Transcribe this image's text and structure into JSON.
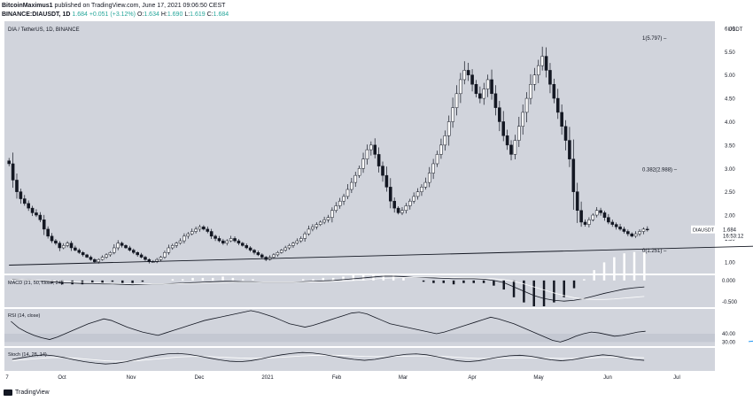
{
  "header": {
    "publisher": "BitcoinMaximus1",
    "published_text": "published on TradingView.com, June 17, 2021 09:06:50 CEST",
    "symbol": "BINANCE:DIAUSDT, 1D",
    "price": "1.684",
    "change": "+0.051 (+3.12%)",
    "o_label": "O:",
    "o": "1.634",
    "h_label": "H:",
    "h": "1.690",
    "l_label": "L:",
    "l": "1.619",
    "c_label": "C:",
    "c": "1.684"
  },
  "footer": {
    "brand": "TradingView"
  },
  "colors": {
    "panel_bg": "#d1d4dc",
    "candle": "#131722",
    "support": "#131722",
    "divergence": "#2196f3",
    "price_tag": "#ffffff"
  },
  "chart_data": {
    "type": "candlestick",
    "title": "DIA / TetherUS, 1D, BINANCE",
    "currency": "USDT",
    "x_labels": [
      "7",
      "Oct",
      "Nov",
      "Dec",
      "2021",
      "Feb",
      "Mar",
      "Apr",
      "May",
      "Jun",
      "Jul"
    ],
    "y_ticks": [
      "1.00",
      "1.50",
      "2.00",
      "2.50",
      "3.00",
      "3.50",
      "4.00",
      "4.50",
      "5.00",
      "5.50",
      "6.00"
    ],
    "ylim": [
      0.75,
      6.15
    ],
    "price_label": {
      "name": "DIAUSDT",
      "value": "1.684",
      "countdown": "16:53:12"
    },
    "fib_levels": [
      {
        "label": "1(5.797)",
        "value": 5.797
      },
      {
        "label": "0.382(2.988)",
        "value": 2.988
      },
      {
        "label": "0(1.251)",
        "value": 1.251
      }
    ],
    "trendline": {
      "from": [
        0,
        0.93
      ],
      "to": [
        213,
        1.38
      ]
    },
    "divergence_line_price": {
      "from": [
        190,
        1.58
      ],
      "to": [
        207,
        1.4
      ]
    },
    "closes": [
      3.1,
      2.75,
      2.5,
      2.35,
      2.25,
      2.15,
      2.05,
      2.0,
      1.9,
      1.7,
      1.55,
      1.45,
      1.4,
      1.3,
      1.35,
      1.4,
      1.3,
      1.25,
      1.2,
      1.15,
      1.1,
      1.05,
      1.0,
      1.05,
      1.1,
      1.15,
      1.2,
      1.3,
      1.4,
      1.35,
      1.3,
      1.25,
      1.2,
      1.15,
      1.1,
      1.05,
      1.0,
      1.0,
      1.05,
      1.1,
      1.2,
      1.3,
      1.35,
      1.4,
      1.45,
      1.55,
      1.6,
      1.65,
      1.7,
      1.75,
      1.7,
      1.65,
      1.55,
      1.5,
      1.45,
      1.4,
      1.45,
      1.5,
      1.45,
      1.4,
      1.35,
      1.3,
      1.25,
      1.2,
      1.15,
      1.1,
      1.05,
      1.1,
      1.15,
      1.2,
      1.25,
      1.3,
      1.35,
      1.4,
      1.45,
      1.5,
      1.6,
      1.7,
      1.75,
      1.8,
      1.85,
      1.9,
      1.95,
      2.1,
      2.2,
      2.3,
      2.4,
      2.55,
      2.7,
      2.85,
      3.0,
      3.2,
      3.4,
      3.5,
      3.3,
      3.05,
      2.85,
      2.6,
      2.3,
      2.15,
      2.05,
      2.1,
      2.2,
      2.3,
      2.4,
      2.5,
      2.6,
      2.7,
      2.9,
      3.1,
      3.3,
      3.5,
      3.7,
      4.0,
      4.3,
      4.6,
      4.9,
      5.1,
      5.0,
      4.8,
      4.6,
      4.5,
      4.7,
      4.9,
      4.6,
      4.3,
      4.0,
      3.7,
      3.5,
      3.3,
      3.6,
      3.9,
      4.2,
      4.5,
      4.8,
      5.0,
      5.2,
      5.4,
      5.1,
      4.8,
      4.5,
      4.2,
      3.9,
      3.6,
      3.2,
      2.5,
      2.1,
      1.85,
      1.8,
      1.9,
      2.0,
      2.1,
      2.05,
      1.95,
      1.85,
      1.8,
      1.75,
      1.7,
      1.65,
      1.6,
      1.55,
      1.6,
      1.65,
      1.7,
      1.684
    ],
    "macd": {
      "label": "MACD (21, 50, close, 24)",
      "ticks": [
        "-0.500",
        "0.000"
      ],
      "ylim": [
        -0.62,
        0.12
      ],
      "line": [
        0.03,
        0.02,
        0.01,
        -0.01,
        -0.03,
        -0.05,
        -0.06,
        -0.07,
        -0.07,
        -0.08,
        -0.08,
        -0.09,
        -0.1,
        -0.09,
        -0.08,
        -0.08,
        -0.07,
        -0.06,
        -0.05,
        -0.04,
        -0.03,
        -0.02,
        -0.02,
        -0.03,
        -0.03,
        -0.04,
        -0.04,
        -0.04,
        -0.04,
        -0.03,
        -0.02,
        -0.01,
        0.0,
        0.02,
        0.04,
        0.06,
        0.08,
        0.1,
        0.1,
        0.09,
        0.08,
        0.07,
        0.06,
        0.05,
        0.04,
        0.04,
        0.04,
        0.03,
        0.0,
        -0.05,
        -0.15,
        -0.25,
        -0.35,
        -0.42,
        -0.46,
        -0.48,
        -0.46,
        -0.42,
        -0.36,
        -0.3,
        -0.25,
        -0.2,
        -0.17,
        -0.15
      ],
      "signal": [
        0.02,
        0.02,
        0.01,
        0.0,
        -0.01,
        -0.02,
        -0.03,
        -0.04,
        -0.05,
        -0.06,
        -0.07,
        -0.07,
        -0.08,
        -0.08,
        -0.08,
        -0.08,
        -0.08,
        -0.07,
        -0.07,
        -0.06,
        -0.05,
        -0.05,
        -0.04,
        -0.04,
        -0.04,
        -0.04,
        -0.04,
        -0.04,
        -0.04,
        -0.04,
        -0.03,
        -0.03,
        -0.02,
        -0.01,
        0.0,
        0.01,
        0.03,
        0.05,
        0.06,
        0.07,
        0.08,
        0.08,
        0.08,
        0.07,
        0.07,
        0.06,
        0.06,
        0.05,
        0.04,
        0.02,
        -0.02,
        -0.08,
        -0.15,
        -0.22,
        -0.29,
        -0.35,
        -0.4,
        -0.43,
        -0.44,
        -0.44,
        -0.43,
        -0.41,
        -0.39,
        -0.37
      ]
    },
    "rsi": {
      "label": "RSI (14, close)",
      "ticks": [
        "30.00",
        "40.00"
      ],
      "ylim": [
        25,
        70
      ],
      "upper": 40,
      "lower": 30,
      "values": [
        55,
        47,
        42,
        38,
        35,
        33,
        36,
        40,
        44,
        48,
        52,
        55,
        58,
        56,
        52,
        48,
        45,
        42,
        40,
        38,
        41,
        44,
        47,
        50,
        53,
        56,
        58,
        60,
        62,
        64,
        66,
        68,
        66,
        63,
        60,
        56,
        52,
        50,
        48,
        50,
        53,
        56,
        59,
        62,
        65,
        66,
        64,
        60,
        56,
        52,
        50,
        48,
        46,
        44,
        42,
        40,
        42,
        45,
        48,
        51,
        54,
        57,
        60,
        58,
        55,
        52,
        48,
        44,
        40,
        36,
        32,
        30,
        33,
        37,
        40,
        42,
        41,
        39,
        37,
        38,
        40,
        42,
        43
      ]
    },
    "divergence_line_rsi": {
      "from": [
        190,
        30.5
      ],
      "to": [
        207,
        38.5
      ]
    },
    "stoch": {
      "label": "Stoch (14, 28, 14)",
      "k": [
        50,
        58,
        65,
        70,
        66,
        58,
        48,
        40,
        34,
        30,
        33,
        40,
        50,
        60,
        68,
        74,
        76,
        72,
        65,
        56,
        48,
        42,
        40,
        44,
        52,
        62,
        70,
        76,
        80,
        78,
        72,
        64,
        56,
        50,
        46,
        50,
        58,
        66,
        72,
        74,
        70,
        62,
        52,
        44,
        40,
        44,
        52,
        60,
        66,
        68,
        64,
        56,
        48,
        44,
        48,
        56,
        64,
        70,
        66,
        58,
        50,
        46
      ],
      "d": [
        45,
        48,
        52,
        56,
        58,
        58,
        56,
        52,
        48,
        44,
        42,
        42,
        44,
        48,
        52,
        56,
        60,
        62,
        63,
        62,
        60,
        58,
        56,
        55,
        55,
        57,
        59,
        62,
        65,
        67,
        68,
        68,
        67,
        65,
        63,
        62,
        62,
        63,
        64,
        65,
        65,
        64,
        62,
        59,
        56,
        54,
        54,
        55,
        56,
        57,
        57,
        56,
        55,
        54,
        54,
        55,
        57,
        59,
        60,
        60,
        59,
        57
      ]
    }
  }
}
